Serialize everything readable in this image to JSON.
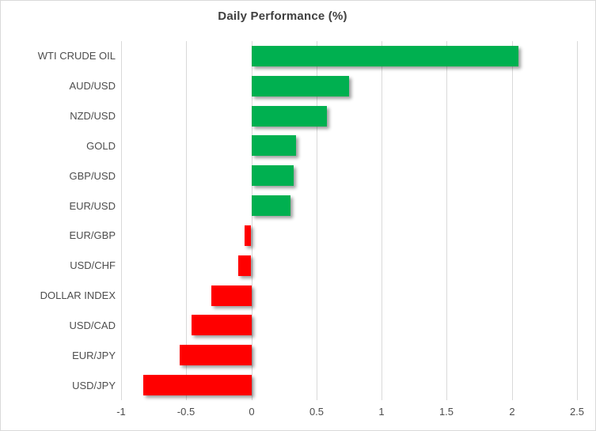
{
  "chart_data": {
    "type": "bar",
    "orientation": "horizontal",
    "title": "Daily Performance (%)",
    "categories": [
      "WTI CRUDE OIL",
      "AUD/USD",
      "NZD/USD",
      "GOLD",
      "GBP/USD",
      "EUR/USD",
      "EUR/GBP",
      "USD/CHF",
      "DOLLAR INDEX",
      "USD/CAD",
      "EUR/JPY",
      "USD/JPY"
    ],
    "values": [
      2.05,
      0.75,
      0.58,
      0.34,
      0.32,
      0.3,
      -0.05,
      -0.1,
      -0.31,
      -0.46,
      -0.55,
      -0.83
    ],
    "xlim": [
      -1,
      2.5
    ],
    "xtick_labels": [
      "-1",
      "-0.5",
      "0",
      "0.5",
      "1",
      "1.5",
      "2",
      "2.5"
    ],
    "grid": true,
    "legend": "none",
    "xlabel": "",
    "ylabel": "",
    "colors": {
      "positive": "#00B050",
      "negative": "#FF0000",
      "gridline": "#D9D9D9",
      "frame": "#D9D9D9",
      "title_text": "#404040",
      "axis_text": "#4D4D4D"
    }
  }
}
